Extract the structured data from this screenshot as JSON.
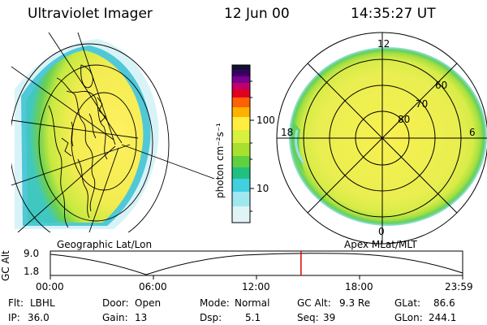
{
  "header": {
    "title": "Ultraviolet Imager",
    "date": "12 Jun 00",
    "time": "14:35:27 UT"
  },
  "colorbar": {
    "unit_label": "photon cm⁻²s⁻¹",
    "ticks": [
      "100",
      "10"
    ],
    "colors": [
      "#111133",
      "#3a0060",
      "#7a0090",
      "#c0006a",
      "#e00020",
      "#ff6000",
      "#ffb000",
      "#ffee40",
      "#d8f040",
      "#a8e030",
      "#60d040",
      "#20c080",
      "#40d0e0",
      "#a0e8f0",
      "#e0f4f8"
    ]
  },
  "left_panel": {
    "label": "Geographic Lat/Lon"
  },
  "right_panel": {
    "label": "Apex MLat/MLT",
    "ring_labels": [
      "60",
      "70",
      "80"
    ],
    "mlt_labels": {
      "top": "12",
      "left": "18",
      "right": "6",
      "bottom": "0"
    }
  },
  "altitude_plot": {
    "ylabel": "GC Alt",
    "y_ticks": [
      "9.0",
      "1.8"
    ],
    "x_ticks": [
      "00:00",
      "06:00",
      "12:00",
      "18:00",
      "23:59"
    ],
    "current_time_fraction": 0.608
  },
  "status": {
    "flt_label": "Flt:",
    "flt_value": "LBHL",
    "door_label": "Door:",
    "door_value": "Open",
    "mode_label": "Mode:",
    "mode_value": "Normal",
    "gcalt_label": "GC Alt:",
    "gcalt_value": "9.3 Re",
    "glat_label": "GLat:",
    "glat_value": "86.6",
    "ip_label": "IP:",
    "ip_value": "36.0",
    "gain_label": "Gain:",
    "gain_value": "13",
    "dsp_label": "Dsp:",
    "dsp_value": "5.1",
    "seq_label": "Seq:",
    "seq_value": "39",
    "glon_label": "GLon:",
    "glon_value": "244.1"
  }
}
